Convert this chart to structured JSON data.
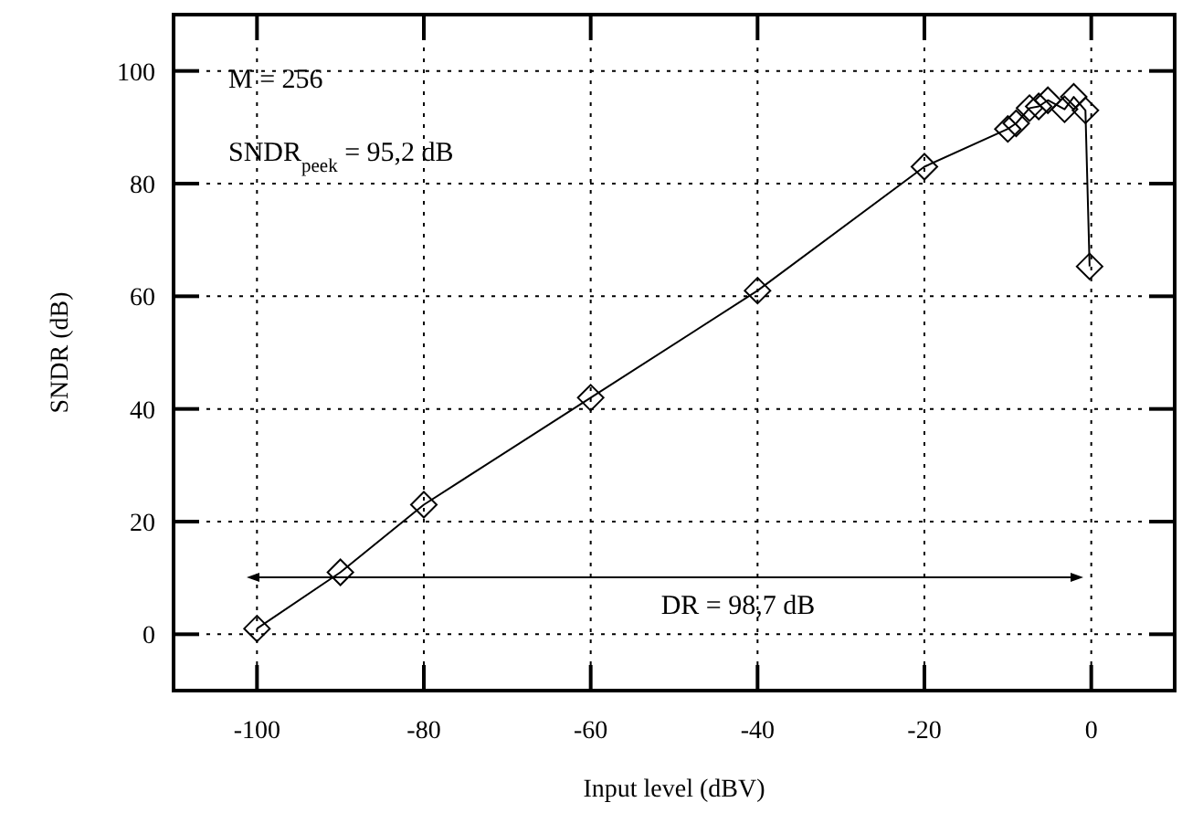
{
  "chart_data": {
    "type": "line",
    "xlabel": "Input level (dBV)",
    "ylabel": "SNDR (dB)",
    "x": [
      -100,
      -90,
      -80,
      -60,
      -40,
      -20,
      -10,
      -9,
      -7.4,
      -6.3,
      -5.2,
      -3.2,
      -2.1,
      -0.7,
      -0.2
    ],
    "series": [
      {
        "color": "#000000",
        "values": [
          1,
          11,
          23,
          42,
          61,
          83,
          89.7,
          90.7,
          93.4,
          93.7,
          94.8,
          93.2,
          95.4,
          93,
          65.3
        ]
      }
    ],
    "xlim": [
      -110,
      10
    ],
    "xticks": [
      -100,
      -80,
      -60,
      -40,
      -20,
      0
    ],
    "ylim": [
      -10,
      110
    ],
    "yticks": [
      0,
      20,
      40,
      60,
      80,
      100
    ],
    "grid": true,
    "marker": "diamond",
    "line_style": "solid",
    "annotations": [
      "M = 256",
      "SNDR$_{peek}$ = 95,2 dB",
      "DR = 98,7 dB"
    ]
  }
}
